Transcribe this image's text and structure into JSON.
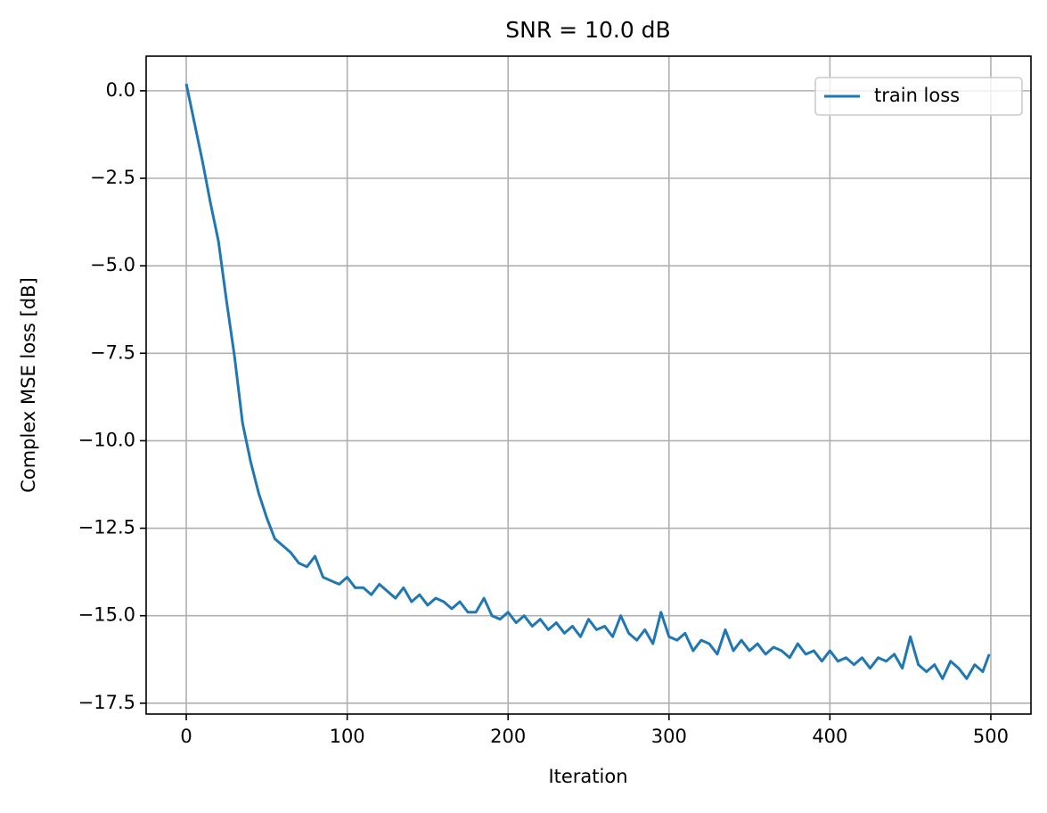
{
  "chart_data": {
    "type": "line",
    "title": "SNR = 10.0 dB",
    "xlabel": "Iteration",
    "ylabel": "Complex MSE loss [dB]",
    "x": [
      0,
      5,
      10,
      15,
      20,
      25,
      30,
      35,
      40,
      45,
      50,
      55,
      60,
      65,
      70,
      75,
      80,
      85,
      90,
      95,
      100,
      105,
      110,
      115,
      120,
      125,
      130,
      135,
      140,
      145,
      150,
      155,
      160,
      165,
      170,
      175,
      180,
      185,
      190,
      195,
      200,
      205,
      210,
      215,
      220,
      225,
      230,
      235,
      240,
      245,
      250,
      255,
      260,
      265,
      270,
      275,
      280,
      285,
      290,
      295,
      300,
      305,
      310,
      315,
      320,
      325,
      330,
      335,
      340,
      345,
      350,
      355,
      360,
      365,
      370,
      375,
      380,
      385,
      390,
      395,
      400,
      405,
      410,
      415,
      420,
      425,
      430,
      435,
      440,
      445,
      450,
      455,
      460,
      465,
      470,
      475,
      480,
      485,
      490,
      495,
      499
    ],
    "series": [
      {
        "name": "train loss",
        "color": "#1f77b4",
        "values": [
          0.2,
          -0.9,
          -2.0,
          -3.2,
          -4.3,
          -6.0,
          -7.6,
          -9.5,
          -10.6,
          -11.5,
          -12.2,
          -12.8,
          -13.0,
          -13.2,
          -13.5,
          -13.6,
          -13.3,
          -13.9,
          -14.0,
          -14.1,
          -13.9,
          -14.2,
          -14.2,
          -14.4,
          -14.1,
          -14.3,
          -14.5,
          -14.2,
          -14.6,
          -14.4,
          -14.7,
          -14.5,
          -14.6,
          -14.8,
          -14.6,
          -14.9,
          -14.9,
          -14.5,
          -15.0,
          -15.1,
          -14.9,
          -15.2,
          -15.0,
          -15.3,
          -15.1,
          -15.4,
          -15.2,
          -15.5,
          -15.3,
          -15.6,
          -15.1,
          -15.4,
          -15.3,
          -15.6,
          -15.0,
          -15.5,
          -15.7,
          -15.4,
          -15.8,
          -14.9,
          -15.6,
          -15.7,
          -15.5,
          -16.0,
          -15.7,
          -15.8,
          -16.1,
          -15.4,
          -16.0,
          -15.7,
          -16.0,
          -15.8,
          -16.1,
          -15.9,
          -16.0,
          -16.2,
          -15.8,
          -16.1,
          -16.0,
          -16.3,
          -16.0,
          -16.3,
          -16.2,
          -16.4,
          -16.2,
          -16.5,
          -16.2,
          -16.3,
          -16.1,
          -16.5,
          -15.6,
          -16.4,
          -16.6,
          -16.4,
          -16.8,
          -16.3,
          -16.5,
          -16.8,
          -16.4,
          -16.6,
          -16.1
        ]
      }
    ],
    "xlim": [
      -24.95,
      524.95
    ],
    "xticks": [
      0,
      100,
      200,
      300,
      400,
      500
    ],
    "ylim": [
      -17.81,
      0.99
    ],
    "yticks": [
      {
        "value": 0,
        "label": "0.0"
      },
      {
        "value": -2.5,
        "label": "−2.5"
      },
      {
        "value": -5,
        "label": "−5.0"
      },
      {
        "value": -7.5,
        "label": "−7.5"
      },
      {
        "value": -10,
        "label": "−10.0"
      },
      {
        "value": -12.5,
        "label": "−12.5"
      },
      {
        "value": -15,
        "label": "−15.0"
      },
      {
        "value": -17.5,
        "label": "−17.5"
      }
    ],
    "grid": true,
    "legend": "upper right"
  }
}
